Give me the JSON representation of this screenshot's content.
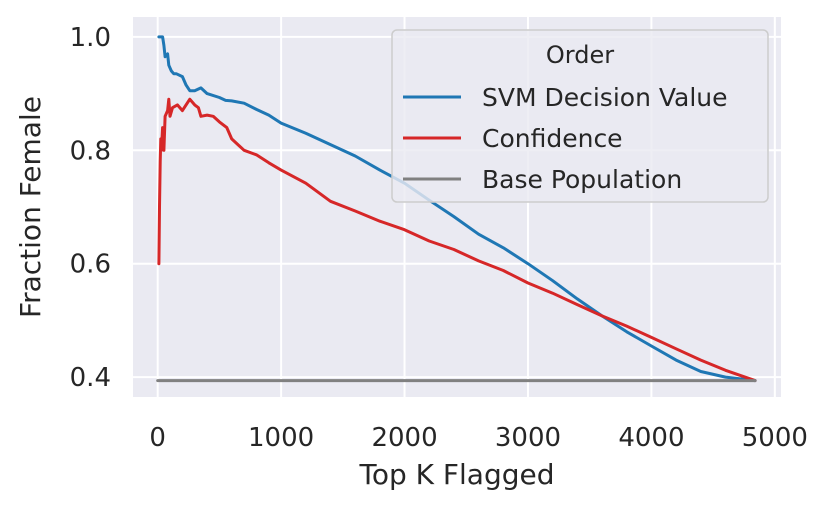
{
  "chart_data": {
    "type": "line",
    "title": "",
    "xlabel": "Top K Flagged",
    "ylabel": "Fraction Female",
    "xlim": [
      -200,
      5050
    ],
    "ylim": [
      0.365,
      1.035
    ],
    "xticks": [
      0,
      1000,
      2000,
      3000,
      4000,
      5000
    ],
    "xtick_labels": [
      "0",
      "1000",
      "2000",
      "3000",
      "4000",
      "5000"
    ],
    "yticks": [
      0.4,
      0.6,
      0.8,
      1.0
    ],
    "ytick_labels": [
      "0.4",
      "0.6",
      "0.8",
      "1.0"
    ],
    "grid": true,
    "legend": {
      "title": "Order",
      "placement": "upper right",
      "entries": [
        "SVM Decision Value",
        "Confidence",
        "Base Population"
      ]
    },
    "series": [
      {
        "name": "SVM Decision Value",
        "color": "#1f77b4",
        "x": [
          10,
          40,
          50,
          60,
          80,
          90,
          110,
          130,
          150,
          200,
          230,
          260,
          300,
          350,
          400,
          500,
          550,
          600,
          700,
          800,
          900,
          1000,
          1200,
          1400,
          1600,
          1800,
          2000,
          2200,
          2400,
          2600,
          2800,
          3000,
          3200,
          3400,
          3600,
          3800,
          4000,
          4200,
          4400,
          4600,
          4840
        ],
        "y": [
          1.0,
          1.0,
          0.985,
          0.965,
          0.97,
          0.95,
          0.94,
          0.935,
          0.935,
          0.93,
          0.915,
          0.905,
          0.905,
          0.91,
          0.9,
          0.893,
          0.888,
          0.887,
          0.883,
          0.872,
          0.862,
          0.848,
          0.83,
          0.81,
          0.79,
          0.765,
          0.742,
          0.712,
          0.683,
          0.652,
          0.628,
          0.6,
          0.57,
          0.538,
          0.508,
          0.48,
          0.455,
          0.43,
          0.41,
          0.4,
          0.394
        ]
      },
      {
        "name": "Confidence",
        "color": "#d62728",
        "x": [
          10,
          15,
          20,
          25,
          30,
          40,
          50,
          60,
          80,
          90,
          100,
          120,
          160,
          200,
          260,
          300,
          330,
          350,
          400,
          450,
          500,
          560,
          600,
          650,
          700,
          800,
          900,
          1000,
          1200,
          1400,
          1600,
          1800,
          2000,
          2200,
          2400,
          2600,
          2800,
          3000,
          3200,
          3400,
          3600,
          3800,
          4000,
          4200,
          4400,
          4600,
          4840
        ],
        "y": [
          0.6,
          0.7,
          0.78,
          0.82,
          0.8,
          0.84,
          0.8,
          0.86,
          0.87,
          0.89,
          0.86,
          0.875,
          0.88,
          0.87,
          0.89,
          0.88,
          0.875,
          0.86,
          0.862,
          0.86,
          0.85,
          0.84,
          0.82,
          0.81,
          0.8,
          0.792,
          0.778,
          0.765,
          0.742,
          0.71,
          0.693,
          0.675,
          0.66,
          0.64,
          0.625,
          0.605,
          0.588,
          0.566,
          0.548,
          0.528,
          0.508,
          0.49,
          0.47,
          0.45,
          0.43,
          0.412,
          0.394
        ]
      },
      {
        "name": "Base Population",
        "color": "#808080",
        "x": [
          0,
          4840
        ],
        "y": [
          0.394,
          0.394
        ]
      }
    ]
  }
}
